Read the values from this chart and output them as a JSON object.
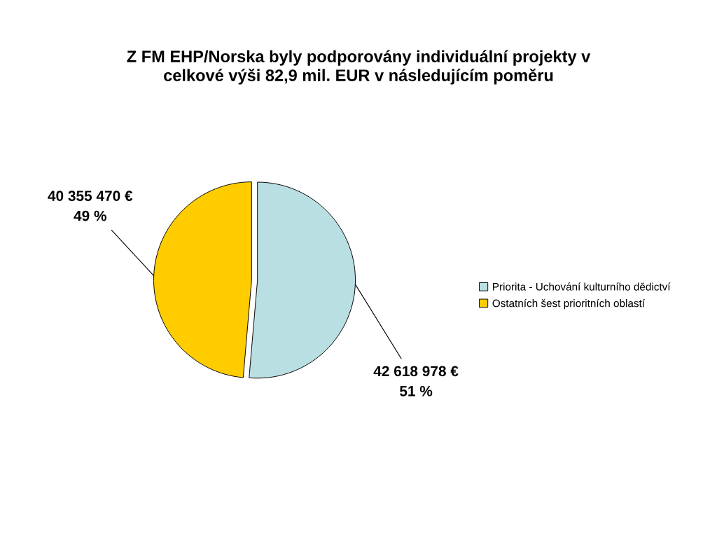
{
  "chart_data": {
    "type": "pie",
    "title": "Z FM EHP/Norska byly podporovány individuální projekty v\ncelkové výši 82,9 mil. EUR v následujícím poměru",
    "categories": [
      "Priorita - Uchování kulturního dědictví",
      "Ostatních šest prioritních oblastí"
    ],
    "values": [
      42618978,
      40355470
    ],
    "colors": [
      "#b9dfe2",
      "#ffcc00"
    ],
    "value_labels": [
      "42 618 978 €\n51 %",
      "40 355 470 €\n49 %"
    ],
    "legend": "right"
  }
}
